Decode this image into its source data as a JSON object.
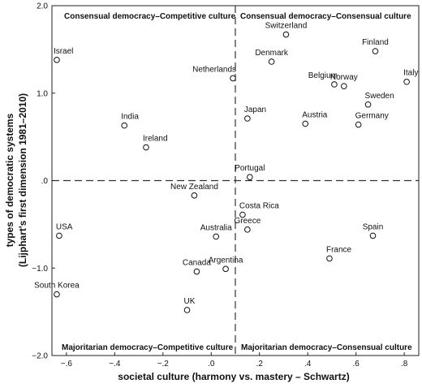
{
  "chart_data": {
    "type": "scatter",
    "xlabel": "societal culture (harmony vs. mastery – Schwartz)",
    "ylabel_lines": [
      "types of democratic systems",
      "(Lijphart's first dimension 1981–2010)"
    ],
    "xlim": [
      -0.66,
      0.86
    ],
    "ylim": [
      -2.0,
      2.0
    ],
    "x_ticks": [
      {
        "value": -0.6,
        "label": "−.6"
      },
      {
        "value": -0.4,
        "label": "−.4"
      },
      {
        "value": -0.2,
        "label": "−.2"
      },
      {
        "value": 0.0,
        "label": ".0"
      },
      {
        "value": 0.2,
        "label": ".2"
      },
      {
        "value": 0.4,
        "label": ".4"
      },
      {
        "value": 0.6,
        "label": ".6"
      },
      {
        "value": 0.8,
        "label": ".8"
      }
    ],
    "y_ticks": [
      {
        "value": 2.0,
        "label": "2.0"
      },
      {
        "value": 1.0,
        "label": "1.0"
      },
      {
        "value": 0.0,
        "label": ".0"
      },
      {
        "value": -1.0,
        "label": "−1.0"
      },
      {
        "value": -2.0,
        "label": "−2.0"
      }
    ],
    "reference_lines": {
      "x": 0.1,
      "y": 0.0
    },
    "quadrant_labels": {
      "top_left": "Consensual democracy–Competitive culture",
      "top_right": "Consensual democracy–Consensual culture",
      "bottom_left": "Majoritarian democracy–Competitive culture",
      "bottom_right": "Majoritarian democracy–Consensual culture"
    },
    "grid": false,
    "points": [
      {
        "label": "Israel",
        "x": -0.64,
        "y": 1.38,
        "anchor": "start"
      },
      {
        "label": "Switzerland",
        "x": 0.31,
        "y": 1.67,
        "anchor": "middle"
      },
      {
        "label": "Finland",
        "x": 0.68,
        "y": 1.48,
        "anchor": "middle"
      },
      {
        "label": "Denmark",
        "x": 0.25,
        "y": 1.36,
        "anchor": "middle"
      },
      {
        "label": "Netherlands",
        "x": 0.09,
        "y": 1.17,
        "anchor": "end"
      },
      {
        "label": "Norway",
        "x": 0.55,
        "y": 1.08,
        "anchor": "middle"
      },
      {
        "label": "Italy",
        "x": 0.81,
        "y": 1.13,
        "anchor": "start"
      },
      {
        "label": "Belgium",
        "x": 0.51,
        "y": 1.1,
        "anchor": "end"
      },
      {
        "label": "Sweden",
        "x": 0.65,
        "y": 0.87,
        "anchor": "start"
      },
      {
        "label": "India",
        "x": -0.36,
        "y": 0.63,
        "anchor": "start"
      },
      {
        "label": "Japan",
        "x": 0.15,
        "y": 0.71,
        "anchor": "start"
      },
      {
        "label": "Austria",
        "x": 0.39,
        "y": 0.65,
        "anchor": "start"
      },
      {
        "label": "Germany",
        "x": 0.61,
        "y": 0.64,
        "anchor": "start"
      },
      {
        "label": "Ireland",
        "x": -0.27,
        "y": 0.38,
        "anchor": "start"
      },
      {
        "label": "Portugal",
        "x": 0.16,
        "y": 0.04,
        "anchor": "middle"
      },
      {
        "label": "New Zealand",
        "x": -0.07,
        "y": -0.17,
        "anchor": "middle"
      },
      {
        "label": "Costa Rica",
        "x": 0.13,
        "y": -0.39,
        "anchor": "start"
      },
      {
        "label": "Greece",
        "x": 0.15,
        "y": -0.56,
        "anchor": "middle"
      },
      {
        "label": "USA",
        "x": -0.63,
        "y": -0.63,
        "anchor": "start"
      },
      {
        "label": "Australia",
        "x": 0.02,
        "y": -0.64,
        "anchor": "middle"
      },
      {
        "label": "Spain",
        "x": 0.67,
        "y": -0.63,
        "anchor": "middle"
      },
      {
        "label": "France",
        "x": 0.49,
        "y": -0.89,
        "anchor": "start"
      },
      {
        "label": "Canada",
        "x": -0.06,
        "y": -1.04,
        "anchor": "middle"
      },
      {
        "label": "Argentina",
        "x": 0.06,
        "y": -1.01,
        "anchor": "middle"
      },
      {
        "label": "South Korea",
        "x": -0.64,
        "y": -1.3,
        "anchor": "middle"
      },
      {
        "label": "UK",
        "x": -0.1,
        "y": -1.48,
        "anchor": "start"
      }
    ]
  }
}
